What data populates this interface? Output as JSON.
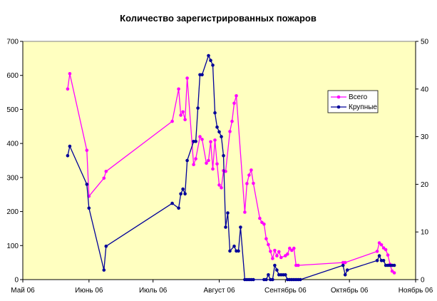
{
  "chart_data": {
    "type": "line",
    "title": "Количество зарегистрированных пожаров",
    "xlabel": "",
    "ylabel": "",
    "x_axis": {
      "min": "2006-05-01",
      "max": "2006-11-01",
      "ticks": [
        {
          "date": "2006-05-01",
          "label": "Май 06"
        },
        {
          "date": "2006-06-01",
          "label": "Июнь 06"
        },
        {
          "date": "2006-07-01",
          "label": "Июль 06"
        },
        {
          "date": "2006-08-01",
          "label": "Август 06"
        },
        {
          "date": "2006-09-01",
          "label": "Сентябрь 06"
        },
        {
          "date": "2006-10-01",
          "label": "Октябрь 06"
        },
        {
          "date": "2006-11-01",
          "label": "Ноябрь 06"
        }
      ]
    },
    "y_left": {
      "min": 0,
      "max": 700,
      "ticks": [
        0,
        100,
        200,
        300,
        400,
        500,
        600,
        700
      ]
    },
    "y_right": {
      "min": 0,
      "max": 50,
      "ticks": [
        0,
        10,
        20,
        30,
        40,
        50
      ]
    },
    "grid": false,
    "legend": {
      "position": "right"
    },
    "plot_background": "#ffffc0",
    "series": [
      {
        "name": "Всего",
        "axis": "left",
        "color": "#ff00ff",
        "points": [
          [
            "2006-05-22",
            560
          ],
          [
            "2006-05-23",
            605
          ],
          [
            "2006-05-31",
            380
          ],
          [
            "2006-06-01",
            245
          ],
          [
            "2006-06-08",
            298
          ],
          [
            "2006-06-09",
            318
          ],
          [
            "2006-07-10",
            465
          ],
          [
            "2006-07-13",
            560
          ],
          [
            "2006-07-14",
            483
          ],
          [
            "2006-07-15",
            493
          ],
          [
            "2006-07-16",
            470
          ],
          [
            "2006-07-17",
            592
          ],
          [
            "2006-07-20",
            338
          ],
          [
            "2006-07-21",
            355
          ],
          [
            "2006-07-23",
            420
          ],
          [
            "2006-07-24",
            412
          ],
          [
            "2006-07-26",
            342
          ],
          [
            "2006-07-27",
            350
          ],
          [
            "2006-07-28",
            405
          ],
          [
            "2006-07-29",
            325
          ],
          [
            "2006-07-30",
            410
          ],
          [
            "2006-07-31",
            340
          ],
          [
            "2006-08-01",
            278
          ],
          [
            "2006-08-02",
            270
          ],
          [
            "2006-08-03",
            320
          ],
          [
            "2006-08-04",
            318
          ],
          [
            "2006-08-06",
            435
          ],
          [
            "2006-08-07",
            465
          ],
          [
            "2006-08-08",
            518
          ],
          [
            "2006-08-09",
            540
          ],
          [
            "2006-08-13",
            198
          ],
          [
            "2006-08-14",
            282
          ],
          [
            "2006-08-15",
            307
          ],
          [
            "2006-08-16",
            322
          ],
          [
            "2006-08-17",
            283
          ],
          [
            "2006-08-20",
            180
          ],
          [
            "2006-08-21",
            168
          ],
          [
            "2006-08-22",
            163
          ],
          [
            "2006-08-23",
            120
          ],
          [
            "2006-08-24",
            103
          ],
          [
            "2006-08-25",
            83
          ],
          [
            "2006-08-26",
            62
          ],
          [
            "2006-08-27",
            86
          ],
          [
            "2006-08-28",
            70
          ],
          [
            "2006-08-29",
            82
          ],
          [
            "2006-08-30",
            65
          ],
          [
            "2006-09-01",
            70
          ],
          [
            "2006-09-02",
            75
          ],
          [
            "2006-09-03",
            92
          ],
          [
            "2006-09-04",
            86
          ],
          [
            "2006-09-05",
            92
          ],
          [
            "2006-09-06",
            42
          ],
          [
            "2006-09-07",
            42
          ],
          [
            "2006-09-28",
            50
          ],
          [
            "2006-09-29",
            50
          ],
          [
            "2006-10-14",
            83
          ],
          [
            "2006-10-15",
            108
          ],
          [
            "2006-10-16",
            102
          ],
          [
            "2006-10-17",
            93
          ],
          [
            "2006-10-18",
            88
          ],
          [
            "2006-10-19",
            72
          ],
          [
            "2006-10-20",
            45
          ],
          [
            "2006-10-21",
            25
          ],
          [
            "2006-10-22",
            20
          ]
        ]
      },
      {
        "name": "Крупные",
        "axis": "right",
        "color": "#000099",
        "points": [
          [
            "2006-05-22",
            26
          ],
          [
            "2006-05-23",
            28
          ],
          [
            "2006-05-31",
            20
          ],
          [
            "2006-06-01",
            15
          ],
          [
            "2006-06-08",
            2
          ],
          [
            "2006-06-09",
            7
          ],
          [
            "2006-07-10",
            16
          ],
          [
            "2006-07-13",
            15
          ],
          [
            "2006-07-14",
            18
          ],
          [
            "2006-07-15",
            19
          ],
          [
            "2006-07-16",
            18
          ],
          [
            "2006-07-17",
            25
          ],
          [
            "2006-07-20",
            29
          ],
          [
            "2006-07-21",
            29
          ],
          [
            "2006-07-22",
            36
          ],
          [
            "2006-07-23",
            43
          ],
          [
            "2006-07-24",
            43
          ],
          [
            "2006-07-27",
            47
          ],
          [
            "2006-07-28",
            46
          ],
          [
            "2006-07-29",
            45
          ],
          [
            "2006-07-30",
            35
          ],
          [
            "2006-07-31",
            32
          ],
          [
            "2006-08-01",
            31
          ],
          [
            "2006-08-02",
            30
          ],
          [
            "2006-08-03",
            26
          ],
          [
            "2006-08-04",
            11
          ],
          [
            "2006-08-05",
            14
          ],
          [
            "2006-08-06",
            6
          ],
          [
            "2006-08-08",
            7
          ],
          [
            "2006-08-09",
            6
          ],
          [
            "2006-08-10",
            6
          ],
          [
            "2006-08-11",
            11
          ],
          [
            "2006-08-13",
            0
          ],
          [
            "2006-08-14",
            0
          ],
          [
            "2006-08-15",
            0
          ],
          [
            "2006-08-16",
            0
          ],
          [
            "2006-08-17",
            0
          ],
          [
            "2006-08-22",
            0
          ],
          [
            "2006-08-23",
            0
          ],
          [
            "2006-08-24",
            1
          ],
          [
            "2006-08-25",
            0
          ],
          [
            "2006-08-26",
            0
          ],
          [
            "2006-08-27",
            3
          ],
          [
            "2006-08-28",
            2
          ],
          [
            "2006-08-29",
            1
          ],
          [
            "2006-08-30",
            1
          ],
          [
            "2006-08-31",
            1
          ],
          [
            "2006-09-01",
            1
          ],
          [
            "2006-09-02",
            0
          ],
          [
            "2006-09-03",
            0
          ],
          [
            "2006-09-04",
            0
          ],
          [
            "2006-09-05",
            0
          ],
          [
            "2006-09-06",
            0
          ],
          [
            "2006-09-07",
            0
          ],
          [
            "2006-09-08",
            0
          ],
          [
            "2006-09-28",
            3
          ],
          [
            "2006-09-29",
            1
          ],
          [
            "2006-09-30",
            2
          ],
          [
            "2006-10-14",
            4
          ],
          [
            "2006-10-15",
            5
          ],
          [
            "2006-10-16",
            4
          ],
          [
            "2006-10-17",
            4
          ],
          [
            "2006-10-18",
            3
          ],
          [
            "2006-10-19",
            3
          ],
          [
            "2006-10-20",
            3
          ],
          [
            "2006-10-21",
            3
          ],
          [
            "2006-10-22",
            3
          ]
        ]
      }
    ]
  }
}
